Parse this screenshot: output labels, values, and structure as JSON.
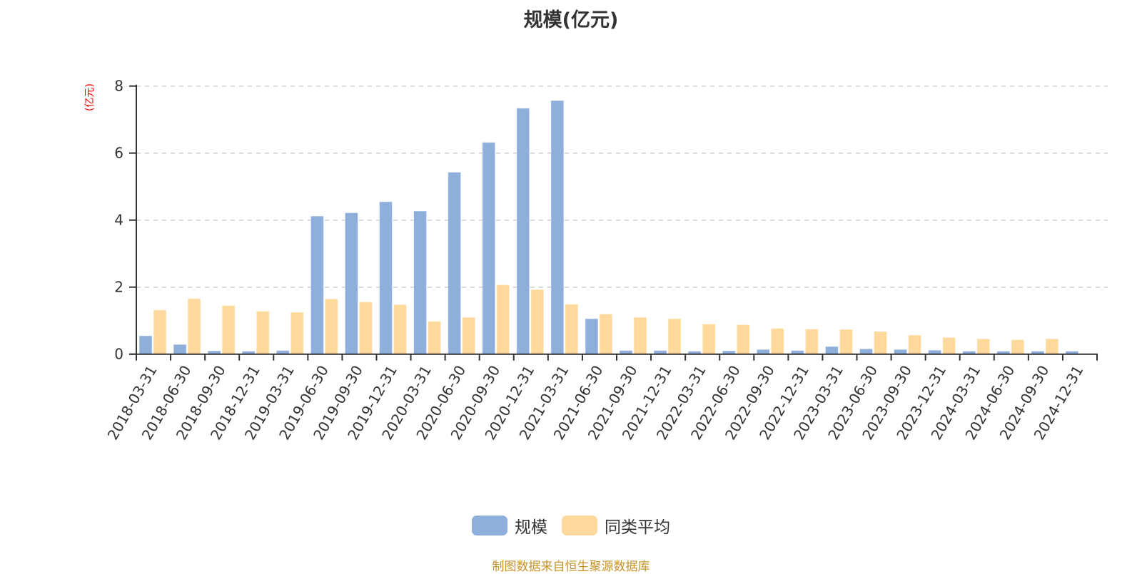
{
  "title": "规模(亿元)",
  "y_unit_label": "(亿元)",
  "legend": {
    "items": [
      {
        "label": "规模",
        "color": "#8eaedc"
      },
      {
        "label": "同类平均",
        "color": "#fed99b"
      }
    ]
  },
  "footer": "制图数据来自恒生聚源数据库",
  "chart_data": {
    "type": "bar",
    "title": "规模(亿元)",
    "xlabel": "",
    "ylabel": "(亿元)",
    "ylim": [
      0,
      8
    ],
    "yticks": [
      0,
      2,
      4,
      6,
      8
    ],
    "grid": true,
    "legend_position": "bottom",
    "categories": [
      "2018-03-31",
      "2018-06-30",
      "2018-09-30",
      "2018-12-31",
      "2019-03-31",
      "2019-06-30",
      "2019-09-30",
      "2019-12-31",
      "2020-03-31",
      "2020-06-30",
      "2020-09-30",
      "2020-12-31",
      "2021-03-31",
      "2021-06-30",
      "2021-09-30",
      "2021-12-31",
      "2022-03-31",
      "2022-06-30",
      "2022-09-30",
      "2022-12-31",
      "2023-03-31",
      "2023-06-30",
      "2023-09-30",
      "2023-12-31",
      "2024-03-31",
      "2024-06-30",
      "2024-09-30",
      "2024-12-31"
    ],
    "series": [
      {
        "name": "规模",
        "color": "#8eaedc",
        "values": [
          0.55,
          0.29,
          0.1,
          0.09,
          0.11,
          4.12,
          4.22,
          4.55,
          4.27,
          5.43,
          6.32,
          7.34,
          7.57,
          1.06,
          0.11,
          0.11,
          0.09,
          0.1,
          0.14,
          0.11,
          0.23,
          0.16,
          0.14,
          0.12,
          0.09,
          0.09,
          0.09,
          0.09
        ]
      },
      {
        "name": "同类平均",
        "color": "#fed99b",
        "values": [
          1.32,
          1.66,
          1.45,
          1.28,
          1.25,
          1.65,
          1.56,
          1.48,
          0.98,
          1.1,
          2.07,
          1.93,
          1.49,
          1.2,
          1.1,
          1.06,
          0.9,
          0.88,
          0.77,
          0.75,
          0.74,
          0.68,
          0.57,
          0.5,
          0.46,
          0.43,
          0.46,
          null
        ]
      }
    ]
  }
}
